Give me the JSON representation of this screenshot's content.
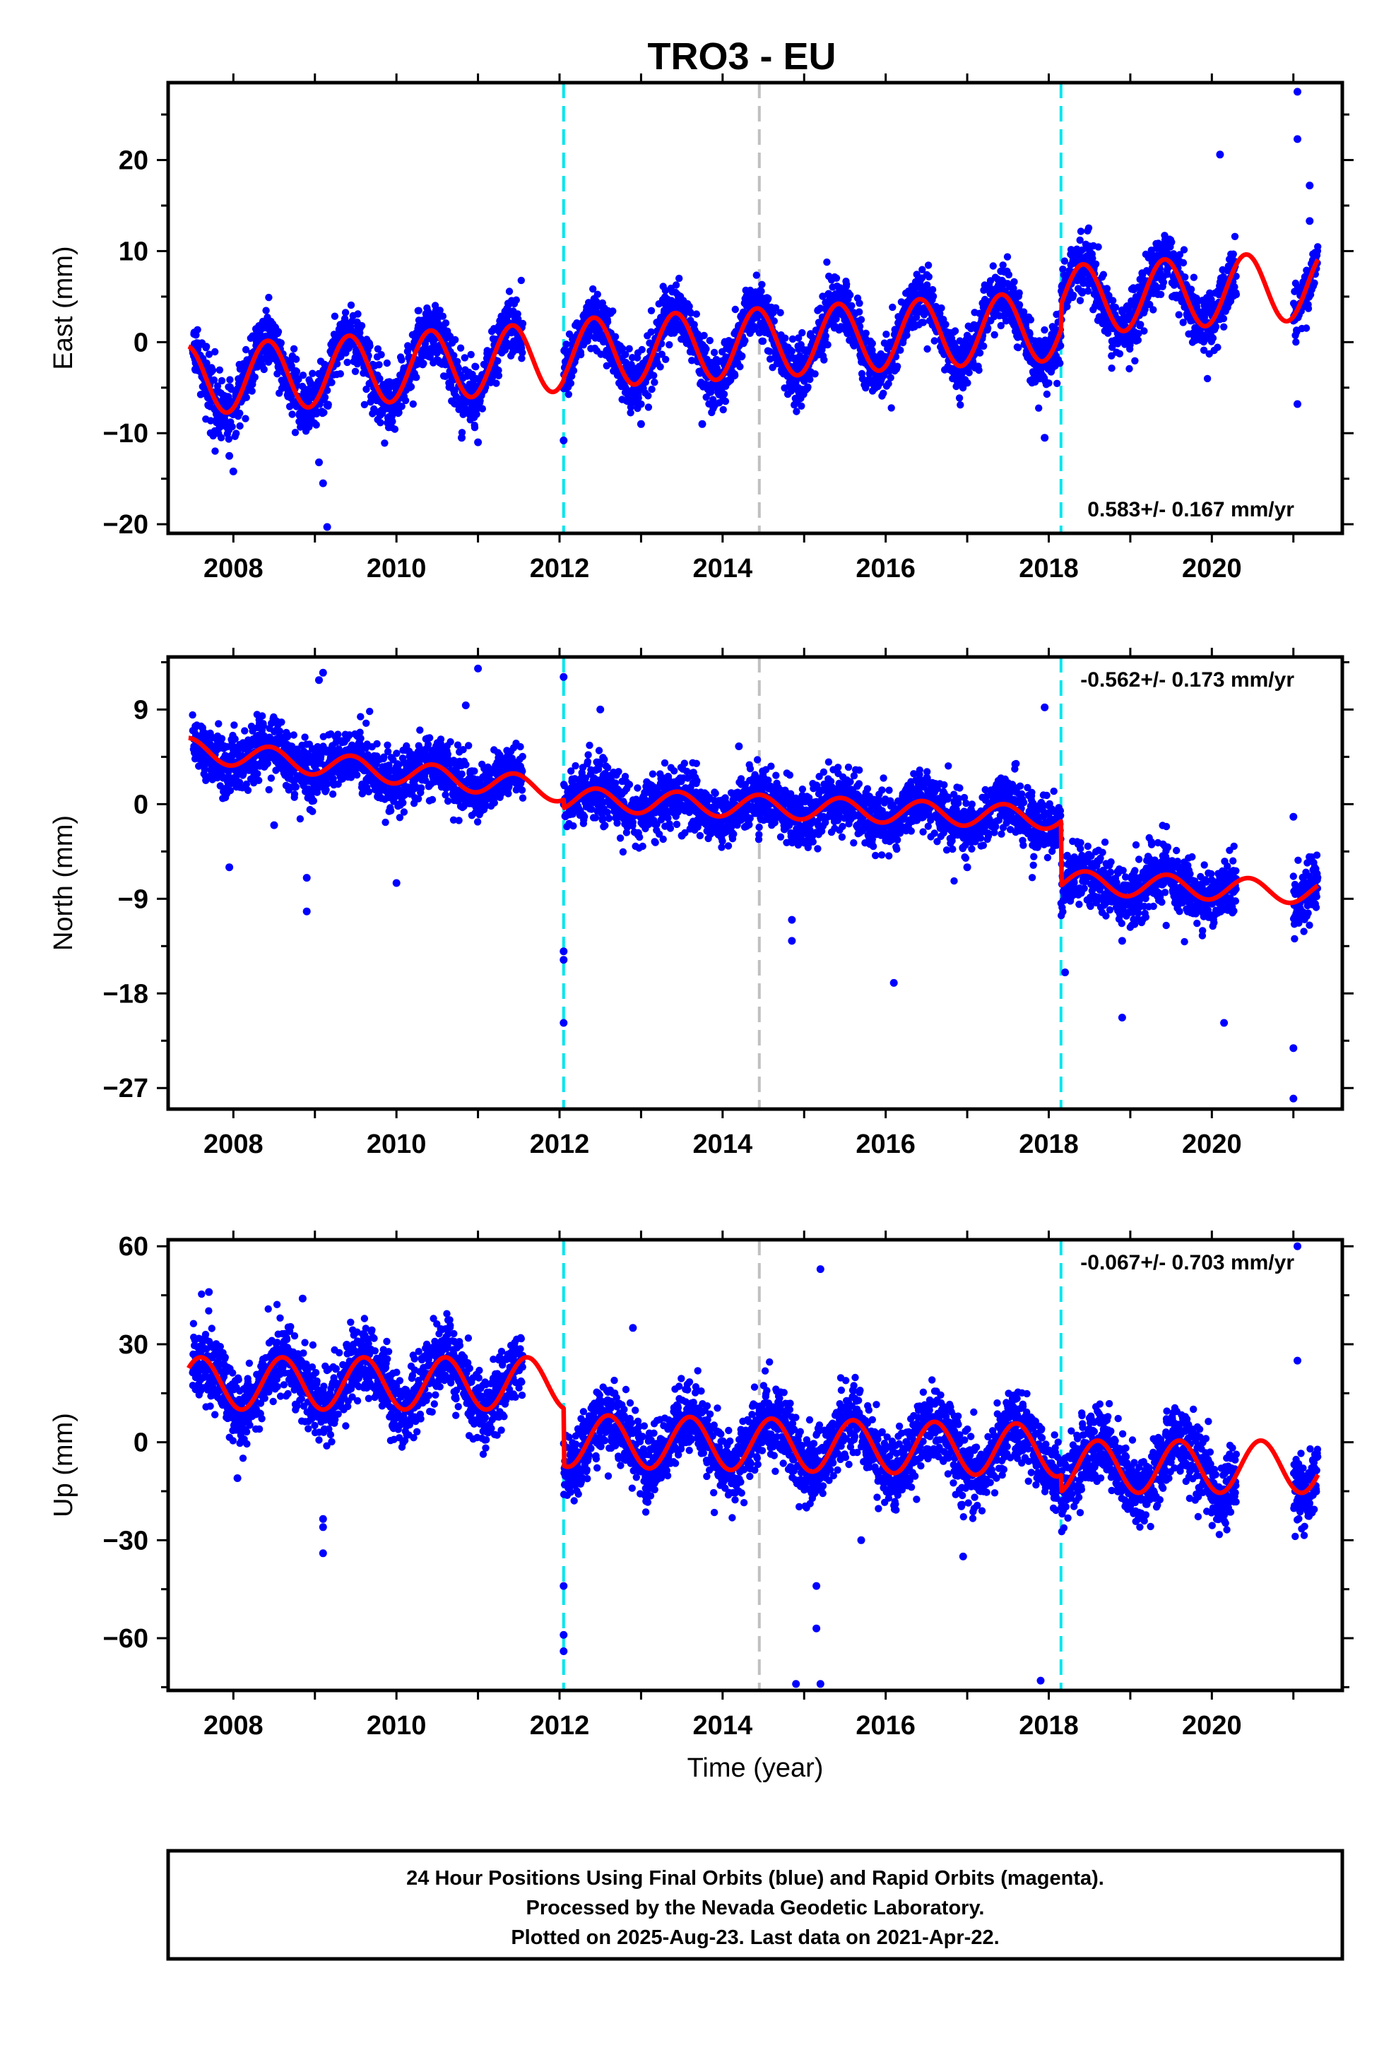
{
  "title": "TRO3 - EU",
  "footer": {
    "lines": [
      "24 Hour Positions Using Final Orbits (blue) and Rapid Orbits (magenta).",
      "Processed by the Nevada Geodetic Laboratory.",
      "Plotted on 2025-Aug-23. Last data on 2021-Apr-22."
    ]
  },
  "colors": {
    "points": "#0000ff",
    "model": "#ff0000",
    "equipment_change": "#00e5ee",
    "other_event": "#c0c0c0",
    "frame": "#000000"
  },
  "chart_data": [
    {
      "type": "scatter",
      "panel": "east",
      "ylabel": "East (mm)",
      "xlabel": "",
      "xlim": [
        2007.2,
        2021.6
      ],
      "ylim": [
        -21,
        28.5
      ],
      "x_ticks": [
        2008,
        2010,
        2012,
        2014,
        2016,
        2018,
        2020
      ],
      "x_tick_labels": [
        "2008",
        "2010",
        "2012",
        "2014",
        "2016",
        "2018",
        "2020"
      ],
      "y_ticks": [
        -20,
        -10,
        0,
        10,
        20
      ],
      "y_tick_labels": [
        "−20",
        "−10",
        "0",
        "10",
        "20"
      ],
      "rate_text": "0.583+/- 0.167 mm/yr",
      "rate_position": "bottom-right",
      "data_range": [
        2007.5,
        2021.3
      ],
      "gaps": [
        [
          2011.55,
          2012.05
        ],
        [
          2020.3,
          2021.0
        ]
      ],
      "seasonal": {
        "amplitude": 3.8,
        "peak_phase": 0.42,
        "noise": 1.6
      },
      "model_segments": [
        {
          "from": 2007.45,
          "to": 2012.05,
          "start": -4.2,
          "end": -1.6
        },
        {
          "from": 2012.05,
          "to": 2018.15,
          "start": -1.3,
          "end": 1.8
        },
        {
          "from": 2018.15,
          "to": 2021.3,
          "start": 4.6,
          "end": 6.3
        }
      ],
      "outliers": [
        [
          2008.0,
          -14.2
        ],
        [
          2007.95,
          -12.5
        ],
        [
          2009.15,
          -20.3
        ],
        [
          2009.1,
          -15.5
        ],
        [
          2009.05,
          -13.2
        ],
        [
          2010.8,
          -10.5
        ],
        [
          2011.0,
          -11.0
        ],
        [
          2012.05,
          -10.8
        ],
        [
          2013.0,
          -9.0
        ],
        [
          2013.75,
          -9.0
        ],
        [
          2017.95,
          -10.5
        ],
        [
          2020.1,
          20.6
        ],
        [
          2021.05,
          27.5
        ],
        [
          2021.05,
          22.3
        ],
        [
          2021.05,
          -6.8
        ],
        [
          2021.2,
          17.2
        ],
        [
          2021.2,
          13.3
        ]
      ],
      "events": [
        {
          "x": 2012.05,
          "kind": "equipment_change"
        },
        {
          "x": 2014.45,
          "kind": "other_event"
        },
        {
          "x": 2018.15,
          "kind": "equipment_change"
        }
      ]
    },
    {
      "type": "scatter",
      "panel": "north",
      "ylabel": "North (mm)",
      "xlabel": "",
      "xlim": [
        2007.2,
        2021.6
      ],
      "ylim": [
        -29,
        14
      ],
      "x_ticks": [
        2008,
        2010,
        2012,
        2014,
        2016,
        2018,
        2020
      ],
      "x_tick_labels": [
        "2008",
        "2010",
        "2012",
        "2014",
        "2016",
        "2018",
        "2020"
      ],
      "y_ticks": [
        -27,
        -18,
        -9,
        0,
        9
      ],
      "y_tick_labels": [
        "−27",
        "−18",
        "−9",
        "0",
        "9"
      ],
      "rate_text": "-0.562+/- 0.173 mm/yr",
      "rate_position": "top-right",
      "data_range": [
        2007.5,
        2021.3
      ],
      "gaps": [
        [
          2011.55,
          2012.05
        ],
        [
          2020.3,
          2021.0
        ]
      ],
      "seasonal": {
        "amplitude": 1.1,
        "peak_phase": 0.45,
        "noise": 1.4
      },
      "model_segments": [
        {
          "from": 2007.45,
          "to": 2012.05,
          "start": 5.2,
          "end": 1.3
        },
        {
          "from": 2012.05,
          "to": 2018.15,
          "start": 0.5,
          "end": -1.3
        },
        {
          "from": 2018.15,
          "to": 2021.3,
          "start": -7.4,
          "end": -8.4
        }
      ],
      "outliers": [
        [
          2007.95,
          -6.0
        ],
        [
          2008.5,
          -2.0
        ],
        [
          2008.9,
          -7.0
        ],
        [
          2008.9,
          -10.2
        ],
        [
          2009.1,
          12.5
        ],
        [
          2009.05,
          11.8
        ],
        [
          2010.0,
          -7.5
        ],
        [
          2011.0,
          12.9
        ],
        [
          2010.85,
          9.4
        ],
        [
          2012.05,
          12.1
        ],
        [
          2012.05,
          -14.0
        ],
        [
          2012.05,
          -20.8
        ],
        [
          2012.05,
          -14.8
        ],
        [
          2012.5,
          9.0
        ],
        [
          2013.5,
          -3.0
        ],
        [
          2014.2,
          5.5
        ],
        [
          2014.85,
          -11.0
        ],
        [
          2014.85,
          -13.0
        ],
        [
          2016.1,
          -17.0
        ],
        [
          2017.0,
          -6.0
        ],
        [
          2017.95,
          9.2
        ],
        [
          2018.2,
          -16.0
        ],
        [
          2018.9,
          -13.0
        ],
        [
          2018.9,
          -20.3
        ],
        [
          2020.15,
          -20.8
        ],
        [
          2021.0,
          -23.2
        ],
        [
          2021.0,
          -28.0
        ],
        [
          2021.0,
          -1.2
        ]
      ],
      "events": [
        {
          "x": 2012.05,
          "kind": "equipment_change"
        },
        {
          "x": 2014.45,
          "kind": "other_event"
        },
        {
          "x": 2018.15,
          "kind": "equipment_change"
        }
      ]
    },
    {
      "type": "scatter",
      "panel": "up",
      "ylabel": "Up (mm)",
      "xlabel": "Time (year)",
      "xlim": [
        2007.2,
        2021.6
      ],
      "ylim": [
        -76,
        62
      ],
      "x_ticks": [
        2008,
        2010,
        2012,
        2014,
        2016,
        2018,
        2020
      ],
      "x_tick_labels": [
        "2008",
        "2010",
        "2012",
        "2014",
        "2016",
        "2018",
        "2020"
      ],
      "y_ticks": [
        -60,
        -30,
        0,
        30,
        60
      ],
      "y_tick_labels": [
        "−60",
        "−30",
        "0",
        "30",
        "60"
      ],
      "rate_text": "-0.067+/- 0.703 mm/yr",
      "rate_position": "top-right",
      "data_range": [
        2007.5,
        2021.3
      ],
      "gaps": [
        [
          2011.55,
          2012.05
        ],
        [
          2020.3,
          2021.0
        ]
      ],
      "seasonal": {
        "amplitude": 8.0,
        "peak_phase": 0.6,
        "noise": 5.5
      },
      "model_segments": [
        {
          "from": 2007.45,
          "to": 2012.05,
          "start": 18.0,
          "end": 18.0
        },
        {
          "from": 2012.05,
          "to": 2018.15,
          "start": 0.5,
          "end": -2.5
        },
        {
          "from": 2018.15,
          "to": 2021.3,
          "start": -7.5,
          "end": -7.5
        }
      ],
      "outliers": [
        [
          2007.7,
          46.0
        ],
        [
          2008.05,
          -11.0
        ],
        [
          2008.85,
          44.0
        ],
        [
          2009.1,
          -23.5
        ],
        [
          2009.1,
          -26.0
        ],
        [
          2009.1,
          -34.0
        ],
        [
          2012.05,
          -64.0
        ],
        [
          2012.05,
          -59.0
        ],
        [
          2012.05,
          -44.0
        ],
        [
          2012.9,
          35.0
        ],
        [
          2014.9,
          -74.0
        ],
        [
          2015.2,
          53.0
        ],
        [
          2015.2,
          -74.0
        ],
        [
          2015.15,
          -57.0
        ],
        [
          2015.15,
          -44.0
        ],
        [
          2017.9,
          -73.0
        ],
        [
          2021.05,
          60.0
        ],
        [
          2021.05,
          25.0
        ],
        [
          2015.7,
          -30.0
        ],
        [
          2016.95,
          -35.0
        ]
      ],
      "events": [
        {
          "x": 2012.05,
          "kind": "equipment_change"
        },
        {
          "x": 2014.45,
          "kind": "other_event"
        },
        {
          "x": 2018.15,
          "kind": "equipment_change"
        }
      ]
    }
  ]
}
